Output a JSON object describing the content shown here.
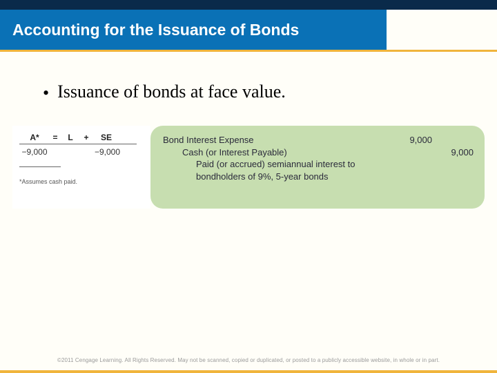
{
  "slide": {
    "title": "Accounting for the Issuance of Bonds",
    "bullet": "Issuance of bonds at face value.",
    "copyright": "©2011 Cengage Learning. All Rights Reserved. May not be scanned, copied or duplicated, or posted to a publicly accessible website, in whole or in part."
  },
  "colors": {
    "band_dark": "#0a2a4a",
    "band_blue": "#0a71b6",
    "accent_orange": "#f0b43c",
    "panel_green": "#c7deb0",
    "page_bg": "#fffef8"
  },
  "equation": {
    "headers": {
      "a": "A*",
      "eq": "=",
      "l": "L",
      "plus": "+",
      "se": "SE"
    },
    "values": {
      "a": "−9,000",
      "l": "",
      "se": "−9,000"
    },
    "footnote": "*Assumes cash paid."
  },
  "journal_entry": {
    "line1": "Bond Interest Expense",
    "line2": "Cash (or Interest Payable)",
    "line3a": "Paid (or accrued) semiannual interest to",
    "line3b": "bondholders of 9%, 5-year bonds",
    "debit": "9,000",
    "credit": "9,000"
  }
}
